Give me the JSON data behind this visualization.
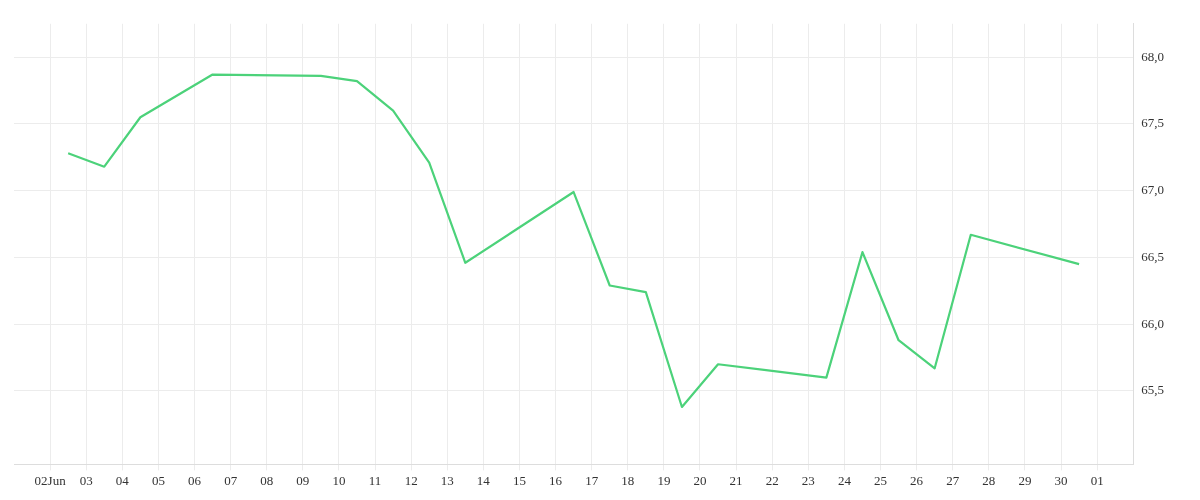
{
  "chart_data": {
    "type": "line",
    "x": [
      "--06-02T12:00",
      "--06-03T12:00",
      "--06-04T12:00",
      "--06-06T12:00",
      "--06-09T12:00",
      "--06-10T12:00",
      "--06-11T12:00",
      "--06-12T12:00",
      "--06-13T12:00",
      "--06-16T12:00",
      "--06-17T12:00",
      "--06-18T12:00",
      "--06-19T12:00",
      "--06-20T12:00",
      "--06-23T12:00",
      "--06-24T12:00",
      "--06-25T12:00",
      "--06-26T12:00",
      "--06-27T12:00",
      "--06-30T12:00"
    ],
    "series": [
      {
        "color": "#4cd27a",
        "values": [
          67.28,
          67.18,
          67.55,
          67.87,
          67.86,
          67.82,
          67.6,
          67.21,
          66.46,
          66.99,
          66.29,
          66.24,
          65.38,
          65.7,
          65.6,
          66.54,
          65.88,
          65.67,
          66.67,
          66.45
        ]
      }
    ],
    "xlim": [
      "--06-01",
      "--07-02"
    ],
    "xticks": [
      {
        "value": "--06-02",
        "label": "02Jun"
      },
      {
        "value": "--06-03",
        "label": "03"
      },
      {
        "value": "--06-04",
        "label": "04"
      },
      {
        "value": "--06-05",
        "label": "05"
      },
      {
        "value": "--06-06",
        "label": "06"
      },
      {
        "value": "--06-07",
        "label": "07"
      },
      {
        "value": "--06-08",
        "label": "08"
      },
      {
        "value": "--06-09",
        "label": "09"
      },
      {
        "value": "--06-10",
        "label": "10"
      },
      {
        "value": "--06-11",
        "label": "11"
      },
      {
        "value": "--06-12",
        "label": "12"
      },
      {
        "value": "--06-13",
        "label": "13"
      },
      {
        "value": "--06-14",
        "label": "14"
      },
      {
        "value": "--06-15",
        "label": "15"
      },
      {
        "value": "--06-16",
        "label": "16"
      },
      {
        "value": "--06-17",
        "label": "17"
      },
      {
        "value": "--06-18",
        "label": "18"
      },
      {
        "value": "--06-19",
        "label": "19"
      },
      {
        "value": "--06-20",
        "label": "20"
      },
      {
        "value": "--06-21",
        "label": "21"
      },
      {
        "value": "--06-22",
        "label": "22"
      },
      {
        "value": "--06-23",
        "label": "23"
      },
      {
        "value": "--06-24",
        "label": "24"
      },
      {
        "value": "--06-25",
        "label": "25"
      },
      {
        "value": "--06-26",
        "label": "26"
      },
      {
        "value": "--06-27",
        "label": "27"
      },
      {
        "value": "--06-28",
        "label": "28"
      },
      {
        "value": "--06-29",
        "label": "29"
      },
      {
        "value": "--06-30",
        "label": "30"
      },
      {
        "value": "--07-01",
        "label": "01"
      }
    ],
    "ylim": [
      64.95,
      68.25
    ],
    "yticks": [
      {
        "value": 65.5,
        "label": "65,5"
      },
      {
        "value": 66,
        "label": "66,0"
      },
      {
        "value": 66.5,
        "label": "66,5"
      },
      {
        "value": 67,
        "label": "67,0"
      },
      {
        "value": 67.5,
        "label": "67,5"
      },
      {
        "value": 68,
        "label": "68,0"
      }
    ],
    "grid": true,
    "legend": false,
    "marker": "none",
    "line_style": "solid"
  }
}
